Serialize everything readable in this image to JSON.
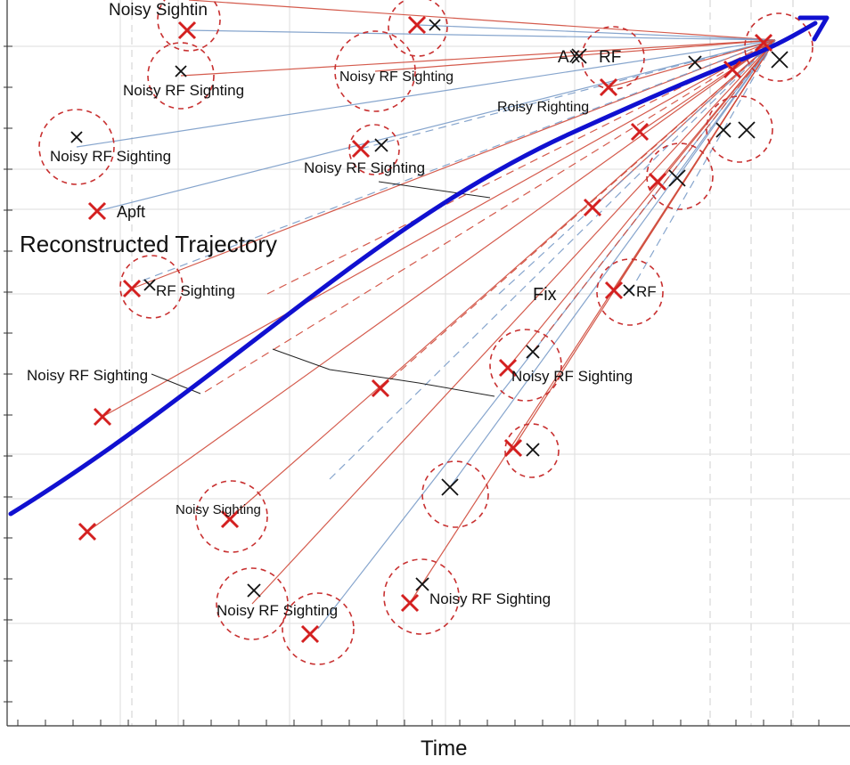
{
  "diagram": {
    "x_axis_label": "Time",
    "trajectory_label": "Reconstructed Trajectory",
    "labels": [
      "Noisy Sightin",
      "Noisy RF Sighting",
      "Noisy RF Sighting",
      "AX",
      "RF",
      "Roisy Righting",
      "Noisy RF Sighting",
      "Noisy RF Sighting",
      "Apft",
      "RF Sighting",
      "Fix",
      "RF",
      "Noisy RF Sighting",
      "Noisy RF Sighting",
      "Noisy Sighting",
      "Noisy RF Sighting",
      "Noisy RF Sighting"
    ],
    "colors": {
      "trajectory": "#1010d0",
      "estimate_marker": "#d42020",
      "raw_marker": "#111111",
      "uncertainty_circle": "#c83030",
      "ray_red": "#d04a3a",
      "ray_blue": "#7a9cc8",
      "grid": "#dddddd"
    },
    "icons": {
      "estimate_marker": "red-x-icon",
      "raw_marker": "black-x-icon",
      "trajectory_end": "arrowhead-icon"
    }
  }
}
